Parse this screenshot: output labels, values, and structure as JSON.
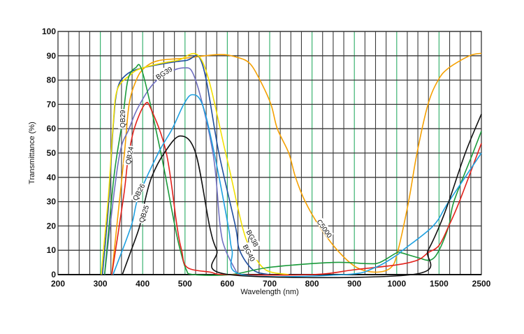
{
  "chart_data": {
    "type": "line",
    "title": "",
    "xlabel": "Wavelength (nm)",
    "ylabel": "Transmittance (%)",
    "x_ticks": [
      200,
      300,
      400,
      500,
      600,
      700,
      800,
      900,
      1000,
      1500,
      2500
    ],
    "x_scale": "piecewise (200-1000 linear, then 1000-1500, 1500-2500 compressed)",
    "y_ticks": [
      0,
      10,
      20,
      30,
      40,
      50,
      60,
      70,
      80,
      90,
      100
    ],
    "xlim": [
      200,
      2500
    ],
    "ylim": [
      0,
      100
    ],
    "grid": true,
    "colors": {
      "grid": "#3a3a3a",
      "grid_major": "#3cb371"
    },
    "series": [
      {
        "name": "C5000",
        "color": "#f5a000",
        "points": [
          [
            327,
            0
          ],
          [
            339,
            20
          ],
          [
            357,
            50
          ],
          [
            368,
            70
          ],
          [
            385,
            80
          ],
          [
            404,
            85
          ],
          [
            437,
            88
          ],
          [
            500,
            89
          ],
          [
            580,
            90.5
          ],
          [
            620,
            89.5
          ],
          [
            652,
            87
          ],
          [
            677,
            80
          ],
          [
            703,
            70
          ],
          [
            718,
            60
          ],
          [
            745,
            50
          ],
          [
            761,
            40
          ],
          [
            784,
            30
          ],
          [
            817,
            20
          ],
          [
            860,
            10
          ],
          [
            905,
            3
          ],
          [
            951,
            1
          ],
          [
            987,
            3
          ],
          [
            1016,
            10
          ],
          [
            1140,
            30
          ],
          [
            1240,
            50
          ],
          [
            1370,
            70
          ],
          [
            1490,
            80
          ],
          [
            1730,
            85
          ],
          [
            2220,
            90
          ],
          [
            2500,
            91
          ]
        ]
      },
      {
        "name": "BG40",
        "color": "#1f4e9e",
        "points": [
          [
            305,
            0
          ],
          [
            320,
            30
          ],
          [
            330,
            60
          ],
          [
            340,
            76
          ],
          [
            360,
            82
          ],
          [
            400,
            85
          ],
          [
            500,
            88
          ],
          [
            540,
            87
          ],
          [
            580,
            50
          ],
          [
            619,
            20
          ],
          [
            629,
            10
          ],
          [
            660,
            2
          ],
          [
            698,
            0
          ]
        ]
      },
      {
        "name": "BG38",
        "color": "#f2e000",
        "points": [
          [
            302,
            0
          ],
          [
            319,
            32
          ],
          [
            330,
            61
          ],
          [
            340,
            76
          ],
          [
            370,
            82
          ],
          [
            400,
            85
          ],
          [
            480,
            88
          ],
          [
            540,
            88
          ],
          [
            596,
            50
          ],
          [
            635,
            20
          ],
          [
            657,
            10
          ],
          [
            690,
            2
          ],
          [
            745,
            0
          ]
        ]
      },
      {
        "name": "BG39",
        "color": "#7070c0",
        "points": [
          [
            310,
            0
          ],
          [
            343,
            47
          ],
          [
            368,
            60
          ],
          [
            393,
            70
          ],
          [
            434,
            80
          ],
          [
            495,
            85
          ],
          [
            525,
            80
          ],
          [
            566,
            50
          ],
          [
            583,
            20
          ],
          [
            596,
            10
          ],
          [
            625,
            0
          ]
        ]
      },
      {
        "name": "QB29",
        "color": "#1a9a3a",
        "points": [
          [
            310,
            0
          ],
          [
            332,
            40
          ],
          [
            352,
            63
          ],
          [
            365,
            80
          ],
          [
            383,
            85
          ],
          [
            400,
            83
          ],
          [
            443,
            50
          ],
          [
            476,
            20
          ],
          [
            489,
            10
          ],
          [
            503,
            2
          ],
          [
            520,
            0
          ],
          [
            608,
            0
          ],
          [
            700,
            3
          ],
          [
            850,
            5
          ],
          [
            930,
            4.5
          ],
          [
            960,
            5
          ],
          [
            1000,
            9
          ],
          [
            1050,
            9
          ],
          [
            1250,
            7
          ],
          [
            1400,
            6
          ],
          [
            1500,
            10
          ],
          [
            1730,
            20
          ],
          [
            1850,
            30
          ],
          [
            2300,
            50
          ],
          [
            2500,
            59
          ]
        ]
      },
      {
        "name": "QB24",
        "color": "#e3211b",
        "points": [
          [
            327,
            0
          ],
          [
            355,
            32
          ],
          [
            365,
            47
          ],
          [
            380,
            60
          ],
          [
            405,
            70
          ],
          [
            420,
            68
          ],
          [
            456,
            50
          ],
          [
            481,
            20
          ],
          [
            492,
            10
          ],
          [
            505,
            3
          ],
          [
            560,
            1
          ],
          [
            600,
            0
          ],
          [
            800,
            0
          ],
          [
            900,
            2
          ],
          [
            1000,
            4
          ],
          [
            1250,
            6
          ],
          [
            1370,
            9
          ],
          [
            1500,
            12
          ],
          [
            1730,
            20
          ],
          [
            1980,
            30
          ],
          [
            2500,
            54
          ]
        ]
      },
      {
        "name": "QB26",
        "color": "#1ea0e0",
        "points": [
          [
            330,
            0
          ],
          [
            373,
            20
          ],
          [
            390,
            32
          ],
          [
            437,
            50
          ],
          [
            470,
            60
          ],
          [
            497,
            70
          ],
          [
            517,
            74
          ],
          [
            541,
            70
          ],
          [
            569,
            50
          ],
          [
            602,
            20
          ],
          [
            611,
            10
          ],
          [
            635,
            0
          ],
          [
            877,
            0
          ],
          [
            950,
            3
          ],
          [
            1000,
            8
          ],
          [
            1070,
            10
          ],
          [
            1430,
            20
          ],
          [
            1730,
            30
          ],
          [
            2500,
            50
          ]
        ]
      },
      {
        "name": "QB25",
        "color": "#111111",
        "points": [
          [
            352,
            0
          ],
          [
            373,
            10
          ],
          [
            393,
            20
          ],
          [
            405,
            30
          ],
          [
            421,
            40
          ],
          [
            451,
            50
          ],
          [
            489,
            57
          ],
          [
            525,
            50
          ],
          [
            558,
            20
          ],
          [
            575,
            10
          ],
          [
            604,
            0
          ],
          [
            1180,
            0
          ],
          [
            1370,
            10
          ],
          [
            1510,
            20
          ],
          [
            1730,
            30
          ],
          [
            2120,
            50
          ],
          [
            2500,
            66
          ]
        ]
      }
    ],
    "annotations": [
      {
        "text": "QB29",
        "series": "QB29",
        "at": [
          352,
          64
        ]
      },
      {
        "text": "QB24",
        "series": "QB24",
        "at": [
          368,
          49
        ]
      },
      {
        "text": "QB26",
        "series": "QB26",
        "at": [
          390,
          34
        ]
      },
      {
        "text": "QB25",
        "series": "QB25",
        "at": [
          402,
          25
        ]
      },
      {
        "text": "BG39",
        "series": "BG39",
        "at": [
          450,
          83
        ]
      },
      {
        "text": "BG38",
        "series": "BG38",
        "at": [
          660,
          15
        ]
      },
      {
        "text": "BG40",
        "series": "BG40",
        "at": [
          652,
          9
        ]
      },
      {
        "text": "C5000",
        "series": "C5000",
        "at": [
          830,
          19
        ]
      }
    ]
  }
}
